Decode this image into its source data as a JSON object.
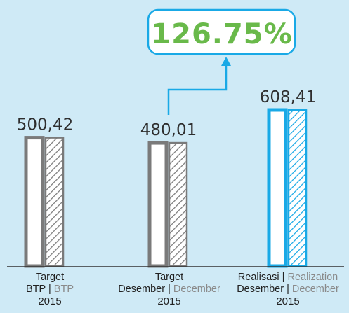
{
  "chart_data": {
    "type": "bar",
    "categories": [
      "Target BTP | BTP 2015",
      "Target Desember | December 2015",
      "Realisasi | Realization Desember | December 2015"
    ],
    "values": [
      500.42,
      480.01,
      608.41
    ],
    "value_labels": [
      "500,42",
      "480,01",
      "608,41"
    ],
    "ylim": [
      0,
      608.41
    ],
    "grid": false,
    "legend": "none",
    "callout": "126.75%",
    "colors": {
      "background": "#cfeaf6",
      "target_bar": "#7a7a7a",
      "realization_bar": "#19a9e6",
      "callout_text": "#69b94a",
      "callout_line": "#19a9e6"
    }
  },
  "labels": [
    {
      "line1_id": "Target",
      "line2_id": "BTP",
      "line2_en": "BTP",
      "year": "2015"
    },
    {
      "line1_id": "Target",
      "line2_id": "Desember",
      "line2_en": "December",
      "year": "2015"
    },
    {
      "line1_id": "Realisasi",
      "line1_en": "Realization",
      "line2_id": "Desember",
      "line2_en": "December",
      "year": "2015"
    }
  ],
  "separator": "|"
}
